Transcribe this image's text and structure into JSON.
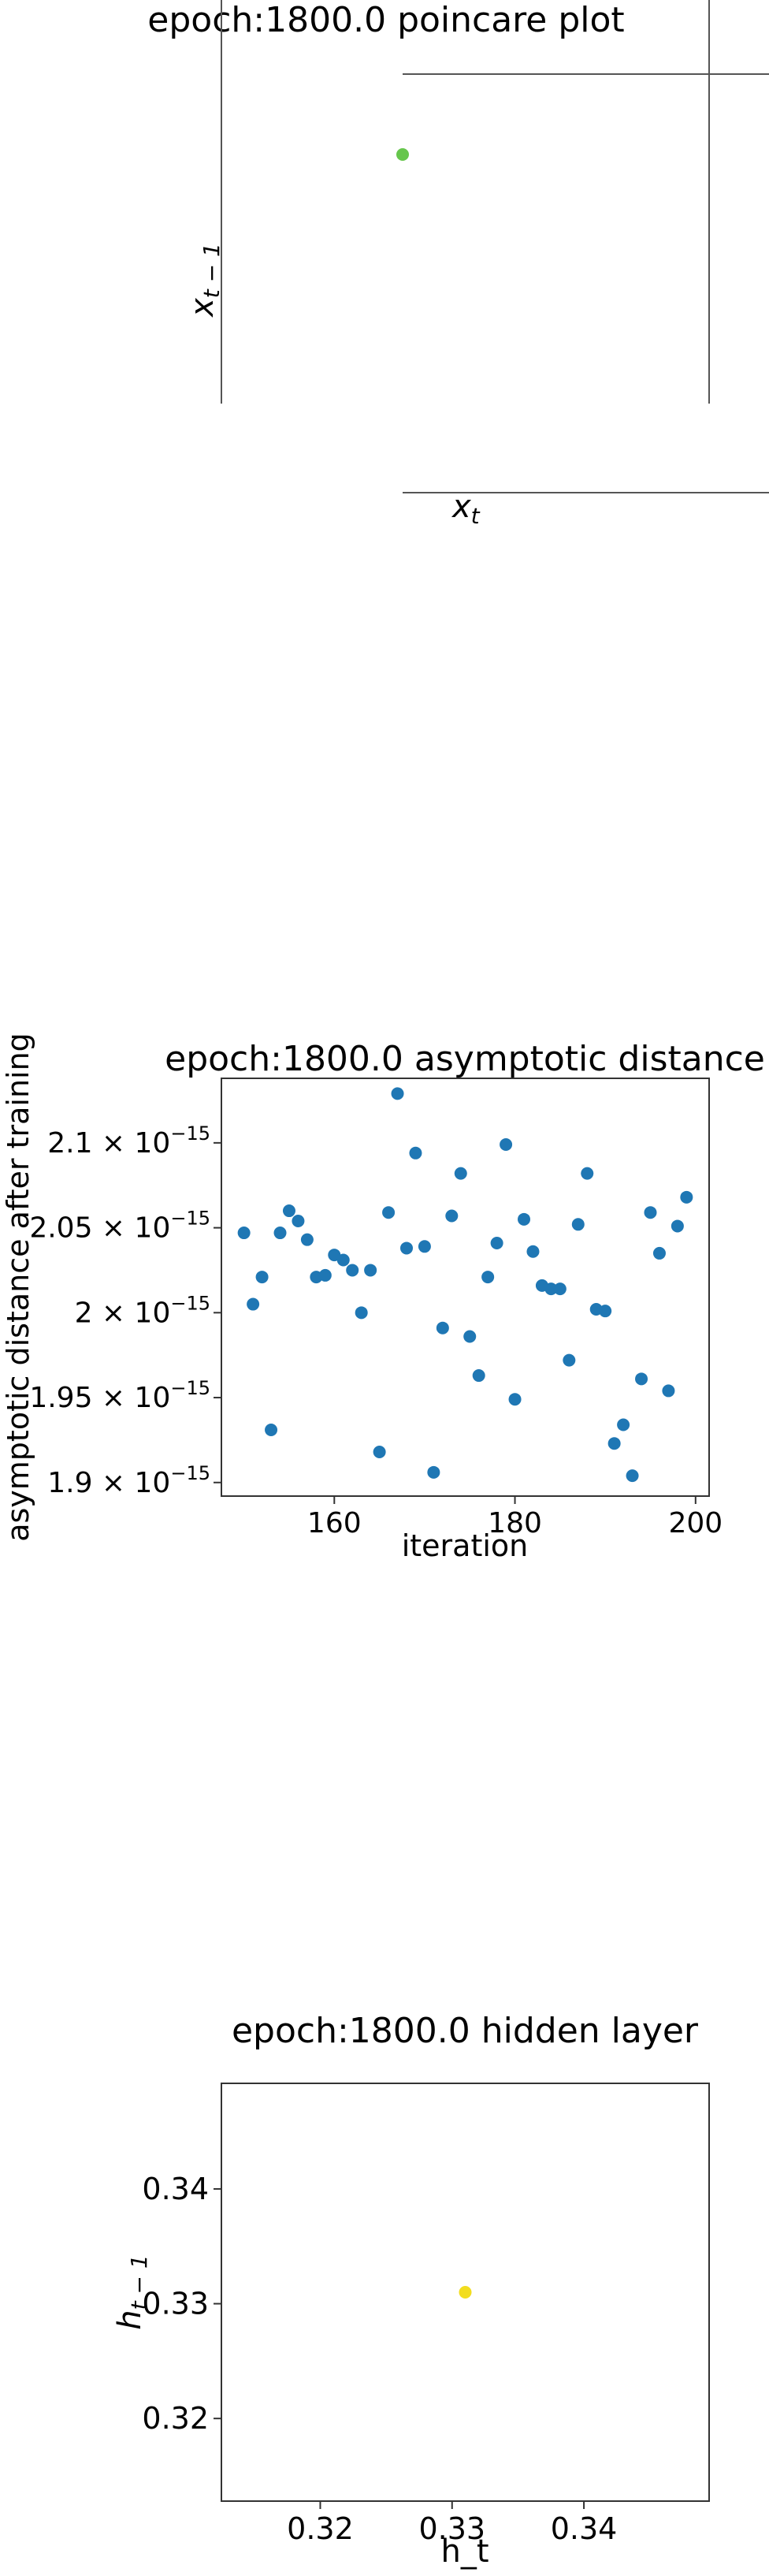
{
  "chart_data": [
    {
      "type": "scatter",
      "title": "epoch:1800.0 poincare plot",
      "xlabel": "x_t",
      "ylabel": "x_{t-1}",
      "grid": false,
      "points": [
        {
          "x": 0,
          "y": 0
        }
      ],
      "point_color": "#66c64c"
    },
    {
      "type": "scatter",
      "title": "epoch:1800.0 asymptotic distance",
      "xlabel": "iteration",
      "ylabel": "asymptotic distance after training",
      "xlim": [
        147.5,
        201.5
      ],
      "ylim": [
        1.892e-15,
        2.138e-15
      ],
      "x_ticks": [
        160,
        180,
        200
      ],
      "y_ticks": [
        {
          "value": 1.9e-15,
          "label": "1.9"
        },
        {
          "value": 1.95e-15,
          "label": "1.95"
        },
        {
          "value": 2e-15,
          "label": "2"
        },
        {
          "value": 2.05e-15,
          "label": "2.05"
        },
        {
          "value": 2.1e-15,
          "label": "2.1"
        }
      ],
      "y_tick_exponent": "-15",
      "grid": false,
      "point_color": "#1f77b4",
      "x": [
        150,
        151,
        152,
        153,
        154,
        155,
        156,
        157,
        158,
        159,
        160,
        161,
        162,
        163,
        164,
        165,
        166,
        167,
        168,
        169,
        170,
        171,
        172,
        173,
        174,
        175,
        176,
        177,
        178,
        179,
        180,
        181,
        182,
        183,
        184,
        185,
        186,
        187,
        188,
        189,
        190,
        191,
        192,
        193,
        194,
        195,
        196,
        197,
        198,
        199
      ],
      "y": [
        2.047e-15,
        2.005e-15,
        2.021e-15,
        1.931e-15,
        2.047e-15,
        2.06e-15,
        2.054e-15,
        2.043e-15,
        2.021e-15,
        2.022e-15,
        2.034e-15,
        2.031e-15,
        2.025e-15,
        2e-15,
        2.025e-15,
        1.918e-15,
        2.059e-15,
        2.129e-15,
        2.038e-15,
        2.094e-15,
        2.039e-15,
        1.906e-15,
        1.991e-15,
        2.057e-15,
        2.082e-15,
        1.986e-15,
        1.963e-15,
        2.021e-15,
        2.041e-15,
        2.099e-15,
        1.949e-15,
        2.055e-15,
        2.036e-15,
        2.016e-15,
        2.014e-15,
        2.014e-15,
        1.972e-15,
        2.052e-15,
        2.082e-15,
        2.002e-15,
        2.001e-15,
        1.923e-15,
        1.934e-15,
        1.904e-15,
        1.961e-15,
        2.059e-15,
        2.035e-15,
        1.954e-15,
        2.051e-15,
        2.068e-15
      ]
    },
    {
      "type": "scatter",
      "title": "epoch:1800.0 hidden layer",
      "xlabel": "h_t",
      "ylabel": "h_{t-1}",
      "xlim": [
        0.3125,
        0.3495
      ],
      "ylim": [
        0.3128,
        0.3492
      ],
      "x_ticks": [
        0.32,
        0.33,
        0.34
      ],
      "y_ticks": [
        0.32,
        0.33,
        0.34
      ],
      "grid": false,
      "points": [
        {
          "x": 0.331,
          "y": 0.331
        }
      ],
      "point_color": "#f2dd1f"
    }
  ]
}
